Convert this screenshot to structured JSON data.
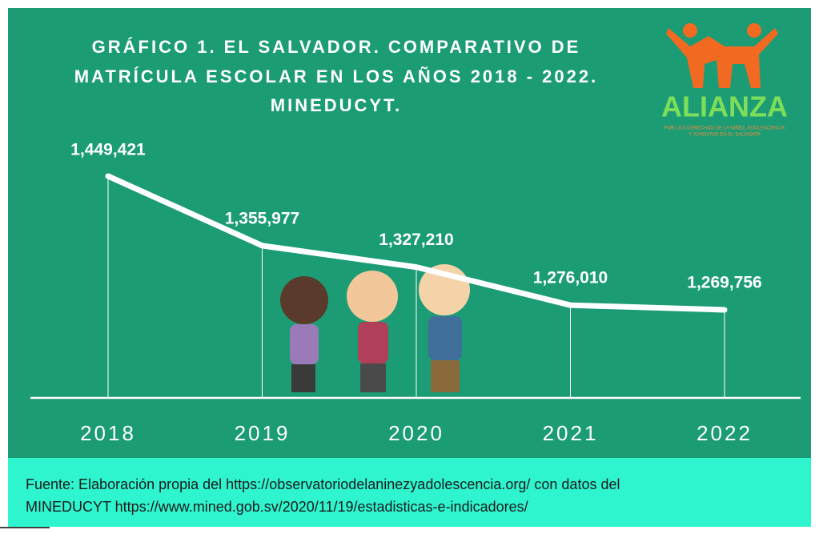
{
  "chart_data": {
    "type": "line",
    "title_lines": [
      "GRÁFICO 1. EL SALVADOR. COMPARATIVO DE",
      "MATRÍCULA ESCOLAR EN LOS AÑOS 2018 - 2022.",
      "MINEDUCYT."
    ],
    "categories": [
      "2018",
      "2019",
      "2020",
      "2021",
      "2022"
    ],
    "values": [
      1449421,
      1355977,
      1327210,
      1276010,
      1269756
    ],
    "value_labels": [
      "1,449,421",
      "1,355,977",
      "1,327,210",
      "1,276,010",
      "1,269,756"
    ],
    "color": "#ffffff",
    "drop_lines": true
  },
  "logo": {
    "name": "ALIANZA",
    "tagline": [
      "POR LOS DERECHOS DE LA NIÑEZ, ADOLESCENCIA",
      "Y JUVENTUD EN EL SALVADOR"
    ]
  },
  "footer": {
    "lines": [
      "Fuente: Elaboración propia del https://observatoriodelaninezyadolescencia.org/ con datos del",
      "MINEDUCYT https://www.mined.gob.sv/2020/11/19/estadisticas-e-indicadores/"
    ]
  }
}
